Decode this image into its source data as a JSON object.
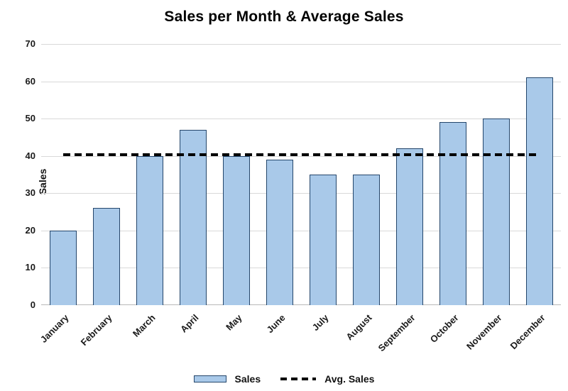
{
  "chart_data": {
    "type": "bar",
    "title": "Sales per Month & Average Sales",
    "ylabel": "Sales",
    "xlabel": "",
    "categories": [
      "January",
      "February",
      "March",
      "April",
      "May",
      "June",
      "July",
      "August",
      "September",
      "October",
      "November",
      "December"
    ],
    "series": [
      {
        "name": "Sales",
        "type": "bar",
        "values": [
          20,
          26,
          40,
          47,
          40,
          39,
          35,
          35,
          42,
          49,
          50,
          61
        ]
      },
      {
        "name": "Avg. Sales",
        "type": "line",
        "style": "dashed",
        "value": 40.33
      }
    ],
    "ylim": [
      0,
      70
    ],
    "ytick_interval": 10,
    "yticks": [
      0,
      10,
      20,
      30,
      40,
      50,
      60,
      70
    ],
    "grid": true,
    "legend_position": "bottom",
    "colors": {
      "bar_fill": "#A9C9E9",
      "bar_border": "#24466B",
      "avg_line": "#000000",
      "gridline": "#D9D9D9",
      "axis_line": "#B8B8B8",
      "title_text": "#000000"
    }
  }
}
